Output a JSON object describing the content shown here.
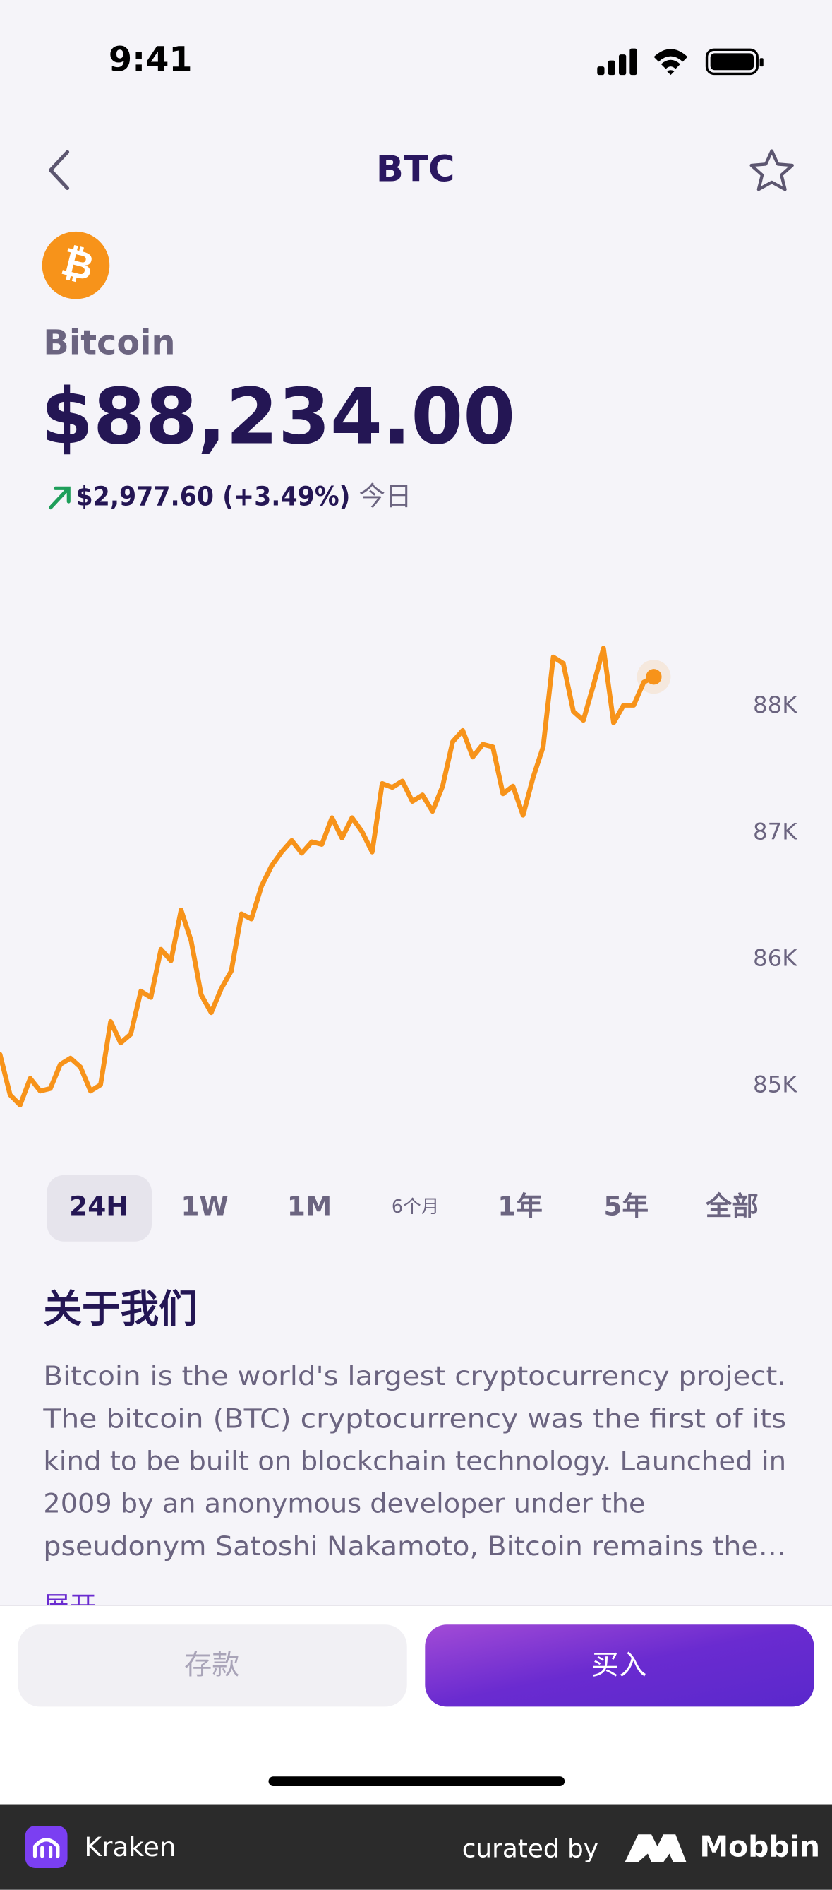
{
  "status_bar": {
    "time": "9:41"
  },
  "header": {
    "title": "BTC"
  },
  "coin": {
    "logo": "₿",
    "name": "Bitcoin",
    "price": "$88,234.00",
    "change": "$2,977.60 (+3.49%)",
    "period": "今日"
  },
  "chart_data": {
    "type": "line",
    "series": [
      {
        "name": "BTC",
        "color": "#f7931a",
        "values": [
          85250,
          84930,
          84850,
          85060,
          84960,
          84980,
          85170,
          85220,
          85150,
          84960,
          85010,
          85510,
          85340,
          85410,
          85750,
          85700,
          86080,
          85990,
          86390,
          86150,
          85720,
          85580,
          85770,
          85910,
          86360,
          86320,
          86580,
          86740,
          86850,
          86940,
          86840,
          86930,
          86910,
          87120,
          86960,
          87120,
          87010,
          86850,
          87390,
          87360,
          87410,
          87250,
          87300,
          87170,
          87370,
          87720,
          87810,
          87600,
          87700,
          87680,
          87310,
          87370,
          87140,
          87440,
          87680,
          88390,
          88340,
          87960,
          87890,
          88170,
          88460,
          87870,
          88010,
          88010,
          88190,
          88234
        ]
      }
    ],
    "ylim": [
      84700,
      88500
    ],
    "yticks": [
      {
        "value": 85000,
        "label": "85K"
      },
      {
        "value": 86000,
        "label": "86K"
      },
      {
        "value": 87000,
        "label": "87K"
      },
      {
        "value": 88000,
        "label": "88K"
      }
    ]
  },
  "tabs": [
    "24H",
    "1W",
    "1M",
    "6个月",
    "1年",
    "5年",
    "全部"
  ],
  "about": {
    "title": "关于我们",
    "lines": [
      "Bitcoin is the world's largest cryptocurrency project.",
      "The bitcoin (BTC) cryptocurrency was the first of its",
      "kind to be built on blockchain technology. Launched in",
      "2009 by an anonymous developer under the",
      "pseudonym Satoshi Nakamoto, Bitcoin remains the…"
    ],
    "more": "展开"
  },
  "actions": {
    "deposit": "存款",
    "buy": "买入"
  },
  "footer": {
    "brand": "Kraken",
    "curated": "curated by",
    "site": "Mobbin"
  }
}
